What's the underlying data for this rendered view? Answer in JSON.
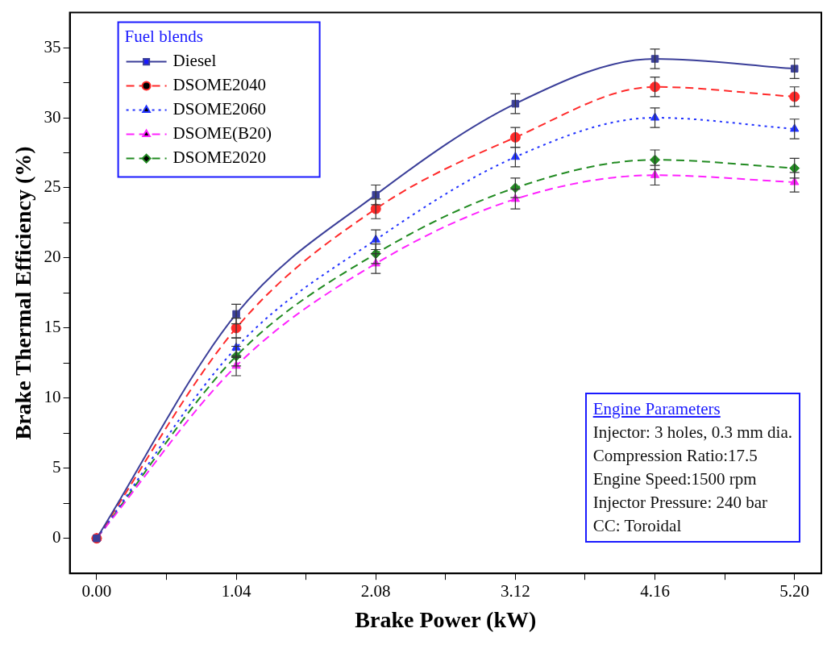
{
  "chart_data": {
    "type": "line",
    "xlabel": "Brake Power (kW)",
    "ylabel": "Brake Thermal Efficiency (%)",
    "legend_title": "Fuel blends",
    "legend": "top left",
    "grid": false,
    "x": [
      0,
      1.04,
      2.08,
      3.12,
      4.16,
      5.2
    ],
    "xlim": [
      -0.2,
      5.4
    ],
    "xticks": [
      {
        "value": 0,
        "label": "0.00"
      },
      {
        "value": 0.52,
        "label": null
      },
      {
        "value": 1.04,
        "label": "1.04"
      },
      {
        "value": 1.56,
        "label": null
      },
      {
        "value": 2.08,
        "label": "2.08"
      },
      {
        "value": 2.6,
        "label": null
      },
      {
        "value": 3.12,
        "label": "3.12"
      },
      {
        "value": 3.64,
        "label": null
      },
      {
        "value": 4.16,
        "label": "4.16"
      },
      {
        "value": 4.68,
        "label": null
      },
      {
        "value": 5.2,
        "label": "5.20"
      }
    ],
    "ylim": [
      -2.5,
      37.5
    ],
    "yticks": [
      {
        "value": 0,
        "label": "0"
      },
      {
        "value": 2.5,
        "label": null
      },
      {
        "value": 5,
        "label": "5"
      },
      {
        "value": 7.5,
        "label": null
      },
      {
        "value": 10,
        "label": "10"
      },
      {
        "value": 12.5,
        "label": null
      },
      {
        "value": 15,
        "label": "15"
      },
      {
        "value": 17.5,
        "label": null
      },
      {
        "value": 20,
        "label": "20"
      },
      {
        "value": 22.5,
        "label": null
      },
      {
        "value": 25,
        "label": "25"
      },
      {
        "value": 27.5,
        "label": null
      },
      {
        "value": 30,
        "label": "30"
      },
      {
        "value": 32.5,
        "label": null
      },
      {
        "value": 35,
        "label": "35"
      }
    ],
    "series": [
      {
        "name": "Diesel",
        "color": "#3b3f99",
        "marker": "square",
        "line_style": "solid",
        "values": [
          0,
          16.0,
          24.5,
          31.0,
          34.2,
          33.5
        ],
        "errors": [
          null,
          0.7,
          0.7,
          0.7,
          0.7,
          0.7
        ]
      },
      {
        "name": "DSOME2040",
        "color": "#ff2a2a",
        "marker": "circle",
        "line_style": "dashed",
        "values": [
          0,
          15.0,
          23.5,
          28.6,
          32.2,
          31.5
        ],
        "errors": [
          null,
          0.7,
          0.7,
          0.7,
          0.7,
          0.7
        ]
      },
      {
        "name": "DSOME2060",
        "color": "#2233ff",
        "marker": "triangle",
        "line_style": "dotted",
        "values": [
          0,
          13.6,
          21.3,
          27.2,
          30.0,
          29.2
        ],
        "errors": [
          null,
          0.7,
          0.7,
          0.7,
          0.7,
          0.7
        ]
      },
      {
        "name": "DSOME(B20)",
        "color": "#ff22ff",
        "marker": "triangle",
        "line_style": "dashed",
        "values": [
          0,
          12.3,
          19.6,
          24.2,
          25.9,
          25.4
        ],
        "errors": [
          null,
          0.7,
          0.7,
          0.7,
          0.7,
          0.7
        ]
      },
      {
        "name": "DSOME2020",
        "color": "#228b22",
        "marker": "diamond",
        "line_style": "dashed",
        "values": [
          0,
          13.0,
          20.3,
          25.0,
          27.0,
          26.4
        ],
        "errors": [
          null,
          0.7,
          0.7,
          0.7,
          0.7,
          0.7
        ]
      }
    ],
    "annotations": [
      "Engine Parameters",
      "Injector: 3 holes, 0.3 mm dia.",
      "Compression Ratio:17.5",
      "Engine Speed:1500 rpm",
      "Injector Pressure: 240 bar",
      "CC: Toroidal"
    ]
  }
}
